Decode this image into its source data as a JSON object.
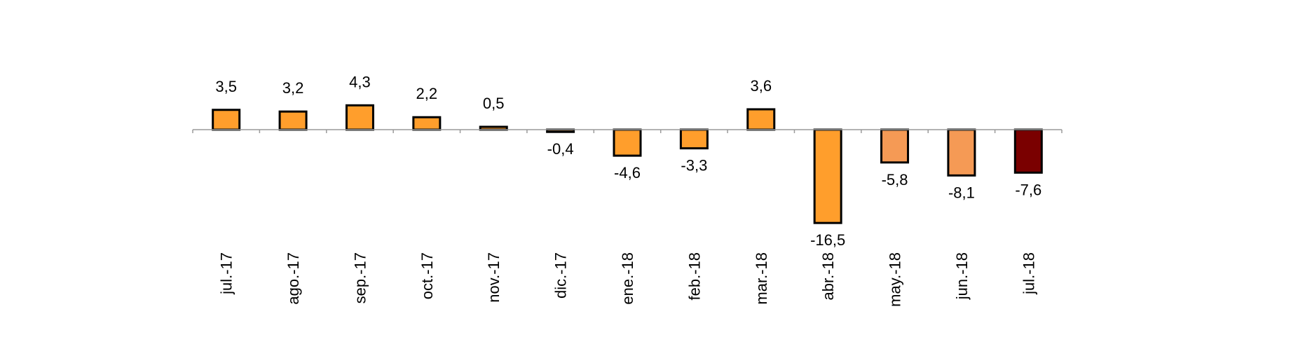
{
  "chart_data": {
    "type": "bar",
    "title": "",
    "xlabel": "",
    "ylabel": "",
    "categories": [
      "jul.-17",
      "ago.-17",
      "sep.-17",
      "oct.-17",
      "nov.-17",
      "dic.-17",
      "ene.-18",
      "feb.-18",
      "mar.-18",
      "abr.-18",
      "may.-18",
      "jun.-18",
      "jul.-18"
    ],
    "values": [
      3.5,
      3.2,
      4.3,
      2.2,
      0.5,
      -0.4,
      -4.6,
      -3.3,
      3.6,
      -16.5,
      -5.8,
      -8.1,
      -7.6
    ],
    "value_labels": [
      "3,5",
      "3,2",
      "4,3",
      "2,2",
      "0,5",
      "-0,4",
      "-4,6",
      "-3,3",
      "3,6",
      "-16,5",
      "-5,8",
      "-8,1",
      "-7,6"
    ],
    "bar_colors": [
      "#FF9E2C",
      "#FF9E2C",
      "#FF9E2C",
      "#FF9E2C",
      "#FF9E2C",
      "#FF9E2C",
      "#FF9E2C",
      "#FF9E2C",
      "#FF9E2C",
      "#FF9E2C",
      "#F59A55",
      "#F59A55",
      "#7A0000"
    ],
    "ylim": [
      -16.5,
      4.3
    ],
    "grid": false,
    "legend": "none"
  }
}
